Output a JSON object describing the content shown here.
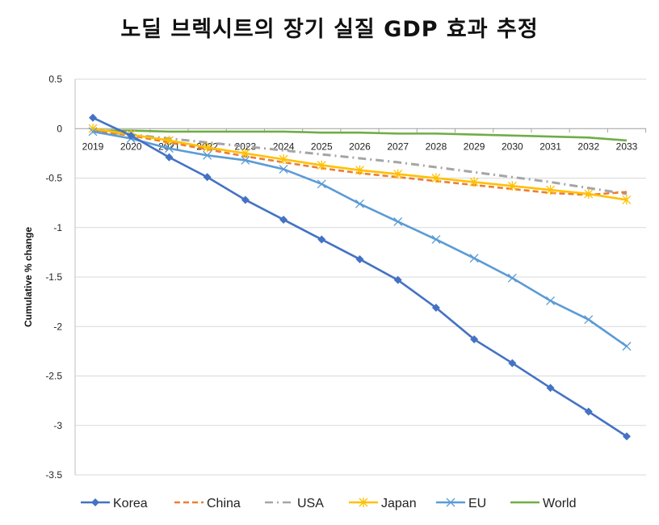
{
  "chart_data": {
    "type": "line",
    "title": "노딜 브렉시트의 장기 실질 GDP 효과 추정",
    "xlabel": "",
    "ylabel": "Cumulative % change",
    "ylim": [
      -3.5,
      0.5
    ],
    "yticks": [
      "0.5",
      "0",
      "-0.5",
      "-1",
      "-1.5",
      "-2",
      "-2.5",
      "-3",
      "-3.5"
    ],
    "grid": true,
    "legend_position": "bottom",
    "categories": [
      "2019",
      "2020",
      "2021",
      "2022",
      "2023",
      "2024",
      "2025",
      "2026",
      "2027",
      "2028",
      "2029",
      "2030",
      "2031",
      "2032",
      "2033"
    ],
    "series": [
      {
        "name": "Korea",
        "color": "#4472C4",
        "style": "solid-diamond",
        "values": [
          0.11,
          -0.07,
          -0.29,
          -0.49,
          -0.72,
          -0.92,
          -1.12,
          -1.32,
          -1.53,
          -1.81,
          -2.13,
          -2.37,
          -2.62,
          -2.86,
          -3.11
        ]
      },
      {
        "name": "China",
        "color": "#ED7D31",
        "style": "dashed",
        "values": [
          -0.02,
          -0.07,
          -0.14,
          -0.21,
          -0.28,
          -0.34,
          -0.4,
          -0.45,
          -0.49,
          -0.53,
          -0.57,
          -0.61,
          -0.65,
          -0.67,
          -0.64
        ]
      },
      {
        "name": "USA",
        "color": "#A5A5A5",
        "style": "dash-dot",
        "values": [
          -0.03,
          -0.06,
          -0.1,
          -0.14,
          -0.18,
          -0.22,
          -0.26,
          -0.3,
          -0.34,
          -0.39,
          -0.44,
          -0.49,
          -0.54,
          -0.6,
          -0.66
        ]
      },
      {
        "name": "Japan",
        "color": "#FFC000",
        "style": "solid-star",
        "values": [
          0.0,
          -0.06,
          -0.12,
          -0.19,
          -0.25,
          -0.31,
          -0.37,
          -0.42,
          -0.46,
          -0.5,
          -0.54,
          -0.58,
          -0.62,
          -0.66,
          -0.72
        ]
      },
      {
        "name": "EU",
        "color": "#5B9BD5",
        "style": "solid-x",
        "values": [
          -0.03,
          -0.1,
          -0.2,
          -0.27,
          -0.32,
          -0.41,
          -0.56,
          -0.76,
          -0.94,
          -1.12,
          -1.31,
          -1.51,
          -1.74,
          -1.93,
          -2.2
        ]
      },
      {
        "name": "World",
        "color": "#70AD47",
        "style": "solid",
        "values": [
          -0.02,
          -0.02,
          -0.03,
          -0.03,
          -0.03,
          -0.03,
          -0.04,
          -0.04,
          -0.05,
          -0.05,
          -0.06,
          -0.07,
          -0.08,
          -0.09,
          -0.12
        ]
      }
    ]
  }
}
